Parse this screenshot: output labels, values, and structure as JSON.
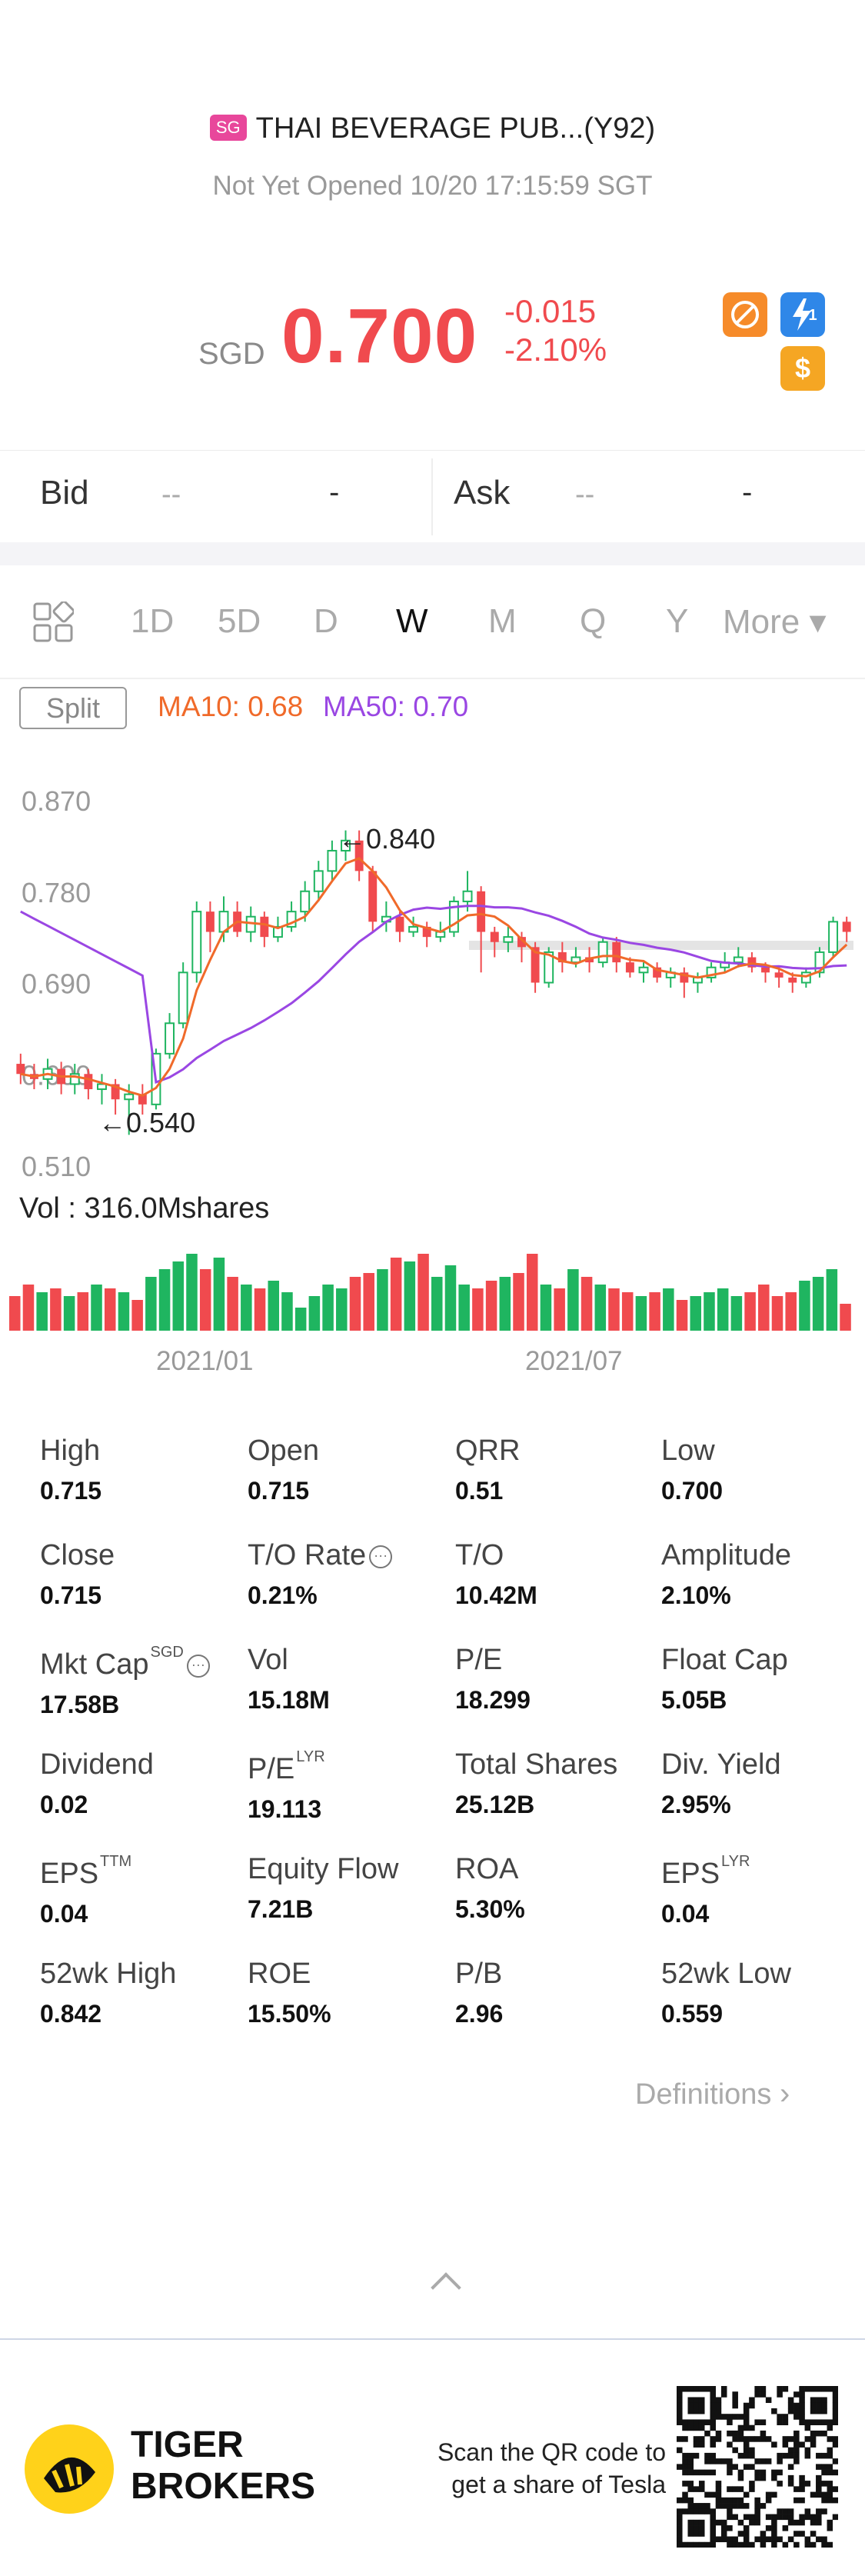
{
  "header": {
    "market_badge": "SG",
    "stock_name": "THAI BEVERAGE PUB...(Y92)",
    "status": "Not Yet Opened 10/20 17:15:59 SGT",
    "currency": "SGD",
    "price": "0.700",
    "change": "-0.015",
    "change_pct": "-2.10%",
    "icons": [
      "no-trading-icon",
      "lightning-icon",
      "dollar-icon"
    ],
    "lightning_count": "1",
    "accent_color": "#f04a4e"
  },
  "bidask": {
    "bid_label": "Bid",
    "bid_value": "--",
    "bid_size": "-",
    "ask_label": "Ask",
    "ask_value": "--",
    "ask_size": "-"
  },
  "tabs": [
    {
      "label": "1D",
      "active": false
    },
    {
      "label": "5D",
      "active": false
    },
    {
      "label": "D",
      "active": false
    },
    {
      "label": "W",
      "active": true
    },
    {
      "label": "M",
      "active": false
    },
    {
      "label": "Q",
      "active": false
    },
    {
      "label": "Y",
      "active": false
    },
    {
      "label": "More ▾",
      "active": false
    }
  ],
  "legend": {
    "split": "Split",
    "ma10": "MA10: 0.68",
    "ma50": "MA50: 0.70",
    "ma10_color": "#f06a2a",
    "ma50_color": "#9a47e3"
  },
  "chart_data": {
    "type": "candlestick",
    "y_ticks": [
      "0.870",
      "0.780",
      "0.690",
      "0.600",
      "0.510"
    ],
    "ylim": [
      0.51,
      0.87
    ],
    "x_ticks": [
      "2021/01",
      "2021/07"
    ],
    "annotations": {
      "high": "←0.840",
      "low": "←0.540"
    },
    "up_color": "#1fb560",
    "down_color": "#f04a4e",
    "candles": [
      [
        0.61,
        0.6,
        0.62,
        0.59
      ],
      [
        0.6,
        0.595,
        0.61,
        0.585
      ],
      [
        0.595,
        0.605,
        0.615,
        0.585
      ],
      [
        0.605,
        0.59,
        0.612,
        0.58
      ],
      [
        0.59,
        0.6,
        0.61,
        0.58
      ],
      [
        0.6,
        0.585,
        0.605,
        0.575
      ],
      [
        0.585,
        0.59,
        0.6,
        0.57
      ],
      [
        0.59,
        0.575,
        0.595,
        0.56
      ],
      [
        0.575,
        0.58,
        0.59,
        0.54
      ],
      [
        0.58,
        0.57,
        0.59,
        0.56
      ],
      [
        0.57,
        0.62,
        0.625,
        0.565
      ],
      [
        0.62,
        0.65,
        0.66,
        0.615
      ],
      [
        0.65,
        0.7,
        0.71,
        0.645
      ],
      [
        0.7,
        0.76,
        0.77,
        0.69
      ],
      [
        0.76,
        0.74,
        0.77,
        0.72
      ],
      [
        0.74,
        0.76,
        0.775,
        0.73
      ],
      [
        0.76,
        0.74,
        0.77,
        0.735
      ],
      [
        0.74,
        0.755,
        0.765,
        0.73
      ],
      [
        0.755,
        0.735,
        0.76,
        0.725
      ],
      [
        0.735,
        0.745,
        0.755,
        0.73
      ],
      [
        0.745,
        0.76,
        0.77,
        0.74
      ],
      [
        0.76,
        0.78,
        0.79,
        0.75
      ],
      [
        0.78,
        0.8,
        0.81,
        0.77
      ],
      [
        0.8,
        0.82,
        0.83,
        0.79
      ],
      [
        0.82,
        0.83,
        0.84,
        0.81
      ],
      [
        0.83,
        0.8,
        0.84,
        0.79
      ],
      [
        0.8,
        0.75,
        0.805,
        0.74
      ],
      [
        0.75,
        0.755,
        0.77,
        0.74
      ],
      [
        0.755,
        0.74,
        0.76,
        0.73
      ],
      [
        0.74,
        0.745,
        0.755,
        0.735
      ],
      [
        0.745,
        0.735,
        0.75,
        0.725
      ],
      [
        0.735,
        0.74,
        0.75,
        0.73
      ],
      [
        0.74,
        0.77,
        0.775,
        0.735
      ],
      [
        0.77,
        0.78,
        0.8,
        0.76
      ],
      [
        0.78,
        0.74,
        0.785,
        0.7
      ],
      [
        0.74,
        0.73,
        0.745,
        0.715
      ],
      [
        0.73,
        0.735,
        0.745,
        0.72
      ],
      [
        0.735,
        0.725,
        0.74,
        0.71
      ],
      [
        0.725,
        0.69,
        0.73,
        0.68
      ],
      [
        0.69,
        0.72,
        0.725,
        0.685
      ],
      [
        0.72,
        0.71,
        0.73,
        0.7
      ],
      [
        0.71,
        0.715,
        0.725,
        0.705
      ],
      [
        0.715,
        0.71,
        0.725,
        0.7
      ],
      [
        0.71,
        0.73,
        0.735,
        0.705
      ],
      [
        0.73,
        0.71,
        0.735,
        0.7
      ],
      [
        0.71,
        0.7,
        0.715,
        0.695
      ],
      [
        0.7,
        0.705,
        0.71,
        0.69
      ],
      [
        0.705,
        0.695,
        0.71,
        0.69
      ],
      [
        0.695,
        0.7,
        0.705,
        0.685
      ],
      [
        0.7,
        0.69,
        0.705,
        0.675
      ],
      [
        0.69,
        0.695,
        0.7,
        0.68
      ],
      [
        0.695,
        0.705,
        0.71,
        0.69
      ],
      [
        0.705,
        0.71,
        0.72,
        0.7
      ],
      [
        0.71,
        0.715,
        0.725,
        0.705
      ],
      [
        0.715,
        0.705,
        0.72,
        0.7
      ],
      [
        0.705,
        0.7,
        0.71,
        0.69
      ],
      [
        0.7,
        0.695,
        0.705,
        0.685
      ],
      [
        0.695,
        0.69,
        0.7,
        0.68
      ],
      [
        0.69,
        0.7,
        0.705,
        0.685
      ],
      [
        0.7,
        0.72,
        0.725,
        0.695
      ],
      [
        0.72,
        0.75,
        0.755,
        0.715
      ],
      [
        0.75,
        0.74,
        0.755,
        0.73
      ]
    ],
    "volume_label": "Vol  : 316.0Mshares",
    "volume": [
      0.45,
      0.6,
      0.5,
      0.55,
      0.45,
      0.5,
      0.6,
      0.55,
      0.5,
      0.4,
      0.7,
      0.8,
      0.9,
      1.0,
      0.8,
      0.95,
      0.7,
      0.6,
      0.55,
      0.65,
      0.5,
      0.3,
      0.45,
      0.6,
      0.55,
      0.7,
      0.75,
      0.8,
      0.95,
      0.9,
      1.0,
      0.7,
      0.85,
      0.6,
      0.55,
      0.65,
      0.7,
      0.75,
      1.0,
      0.6,
      0.55,
      0.8,
      0.7,
      0.6,
      0.55,
      0.5,
      0.45,
      0.5,
      0.55,
      0.4,
      0.45,
      0.5,
      0.55,
      0.45,
      0.5,
      0.6,
      0.45,
      0.5,
      0.65,
      0.7,
      0.8,
      0.35
    ]
  },
  "stats": [
    {
      "label": "High",
      "value": "0.715"
    },
    {
      "label": "Open",
      "value": "0.715"
    },
    {
      "label": "QRR",
      "value": "0.51"
    },
    {
      "label": "Low",
      "value": "0.700"
    },
    {
      "label": "Close",
      "value": "0.715"
    },
    {
      "label": "T/O Rate",
      "value": "0.21%",
      "info": true
    },
    {
      "label": "T/O",
      "value": "10.42M"
    },
    {
      "label": "Amplitude",
      "value": "2.10%"
    },
    {
      "label": "Mkt Cap",
      "value": "17.58B",
      "sup": "SGD",
      "info": true
    },
    {
      "label": "Vol",
      "value": "15.18M"
    },
    {
      "label": "P/E",
      "value": "18.299"
    },
    {
      "label": "Float Cap",
      "value": "5.05B"
    },
    {
      "label": "Dividend",
      "value": "0.02"
    },
    {
      "label": "P/E",
      "value": "19.113",
      "sup": "LYR"
    },
    {
      "label": "Total Shares",
      "value": "25.12B"
    },
    {
      "label": "Div. Yield",
      "value": "2.95%"
    },
    {
      "label": "EPS",
      "value": "0.04",
      "sup": "TTM"
    },
    {
      "label": "Equity Flow",
      "value": "7.21B"
    },
    {
      "label": "ROA",
      "value": "5.30%"
    },
    {
      "label": "EPS",
      "value": "0.04",
      "sup": "LYR"
    },
    {
      "label": "52wk High",
      "value": "0.842"
    },
    {
      "label": "ROE",
      "value": "15.50%"
    },
    {
      "label": "P/B",
      "value": "2.96"
    },
    {
      "label": "52wk Low",
      "value": "0.559"
    }
  ],
  "definitions_link": "Definitions",
  "footer": {
    "brand_line1": "TIGER",
    "brand_line2": "BROKERS",
    "scan_text_1": "Scan the QR code to",
    "scan_text_2": "get a share of Tesla"
  }
}
